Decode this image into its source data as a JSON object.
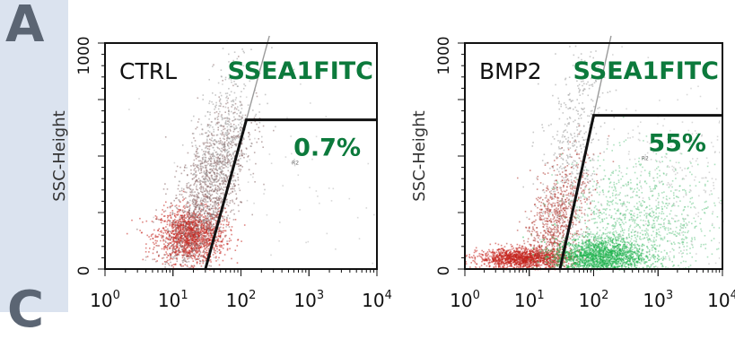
{
  "panel_letters": {
    "top": "A",
    "bottom": "C"
  },
  "colors": {
    "left_band": "#dbe3ef",
    "marker": "#0c7a3c",
    "positive_events": "#1db24c",
    "negative_events": "#c4221c"
  },
  "chart_data": [
    {
      "type": "scatter",
      "sample": "CTRL",
      "marker": "SSEA1FITC",
      "gate_percent": "0.7%",
      "region_label": "R2",
      "ylabel": "SSC-Height",
      "y_ticks": [
        "0",
        "1000"
      ],
      "x_ticks": [
        {
          "base": "10",
          "exp": "0"
        },
        {
          "base": "10",
          "exp": "1"
        },
        {
          "base": "10",
          "exp": "2"
        },
        {
          "base": "10",
          "exp": "3"
        },
        {
          "base": "10",
          "exp": "4"
        }
      ],
      "x_scale": "log",
      "xlim": [
        1,
        10000
      ],
      "ylim": [
        0,
        1000
      ],
      "gate_polygon": [
        [
          30,
          0
        ],
        [
          120,
          660
        ],
        [
          10000,
          660
        ],
        [
          10000,
          0
        ]
      ],
      "populations": [
        {
          "center_x": 18,
          "center_y": 150,
          "spread_x_log": 0.25,
          "spread_y": 60,
          "tilt": 0.0,
          "count": 1500,
          "color": "#c4221c"
        },
        {
          "center_x": 30,
          "center_y": 320,
          "spread_x_log": 0.3,
          "spread_y": 150,
          "tilt": 450,
          "count": 1400,
          "color": "#8a6a6a"
        },
        {
          "center_x": 50,
          "center_y": 550,
          "spread_x_log": 0.25,
          "spread_y": 160,
          "tilt": 450,
          "count": 500,
          "color": "#9a9a9a"
        },
        {
          "center_x": 400,
          "center_y": 350,
          "spread_x_log": 1.0,
          "spread_y": 300,
          "tilt": 0.0,
          "count": 90,
          "color": "#b8b8b8"
        }
      ]
    },
    {
      "type": "scatter",
      "sample": "BMP2",
      "marker": "SSEA1FITC",
      "gate_percent": "55%",
      "region_label": "R2",
      "ylabel": "SSC-Height",
      "y_ticks": [
        "0",
        "1000"
      ],
      "x_ticks": [
        {
          "base": "10",
          "exp": "0"
        },
        {
          "base": "10",
          "exp": "1"
        },
        {
          "base": "10",
          "exp": "2"
        },
        {
          "base": "10",
          "exp": "3"
        },
        {
          "base": "10",
          "exp": "4"
        }
      ],
      "x_scale": "log",
      "xlim": [
        1,
        10000
      ],
      "ylim": [
        0,
        1000
      ],
      "gate_polygon": [
        [
          30,
          0
        ],
        [
          100,
          680
        ],
        [
          10000,
          680
        ],
        [
          10000,
          0
        ]
      ],
      "populations": [
        {
          "center_x": 8,
          "center_y": 50,
          "spread_x_log": 0.35,
          "spread_y": 22,
          "tilt": 0.0,
          "count": 1400,
          "color": "#c4221c"
        },
        {
          "center_x": 25,
          "center_y": 200,
          "spread_x_log": 0.25,
          "spread_y": 120,
          "tilt": 300,
          "count": 900,
          "color": "#b03a33"
        },
        {
          "center_x": 45,
          "center_y": 520,
          "spread_x_log": 0.25,
          "spread_y": 200,
          "tilt": 300,
          "count": 450,
          "color": "#9a9a9a"
        },
        {
          "center_x": 120,
          "center_y": 60,
          "spread_x_log": 0.35,
          "spread_y": 40,
          "tilt": 0.0,
          "count": 1700,
          "color": "#1db24c"
        },
        {
          "center_x": 500,
          "center_y": 180,
          "spread_x_log": 0.6,
          "spread_y": 150,
          "tilt": 0.0,
          "count": 1200,
          "color": "#6cc98a"
        },
        {
          "center_x": 1500,
          "center_y": 380,
          "spread_x_log": 0.6,
          "spread_y": 200,
          "tilt": 0.0,
          "count": 250,
          "color": "#b8b8b8"
        }
      ]
    }
  ]
}
